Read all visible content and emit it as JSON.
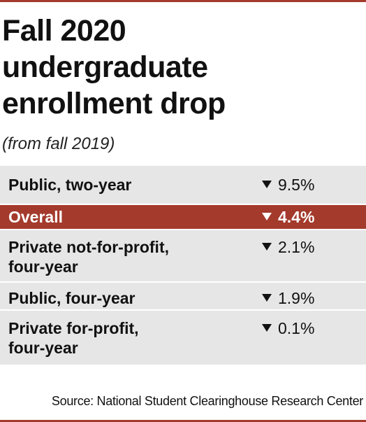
{
  "chart_data": {
    "type": "table",
    "title_lines": [
      "Fall 2020",
      "undergraduate",
      "enrollment drop"
    ],
    "subtitle": "(from fall 2019)",
    "rows": [
      {
        "label_lines": [
          "Public, two-year"
        ],
        "display": "9.5%",
        "value": -9.5,
        "highlight": false
      },
      {
        "label_lines": [
          "Overall"
        ],
        "display": "4.4%",
        "value": -4.4,
        "highlight": true
      },
      {
        "label_lines": [
          "Private not-for-profit,",
          "four-year"
        ],
        "display": "2.1%",
        "value": -2.1,
        "highlight": false
      },
      {
        "label_lines": [
          "Public, four-year"
        ],
        "display": "1.9%",
        "value": -1.9,
        "highlight": false
      },
      {
        "label_lines": [
          "Private for-profit,",
          "four-year"
        ],
        "display": "0.1%",
        "value": -0.1,
        "highlight": false
      }
    ],
    "indicator_icon": "down-triangle-icon",
    "source": "Source: National Student Clearinghouse Research Center"
  },
  "colors": {
    "accent": "#a33a2c",
    "row_background": "#e6e6e6",
    "highlight_text": "#ffffff"
  }
}
